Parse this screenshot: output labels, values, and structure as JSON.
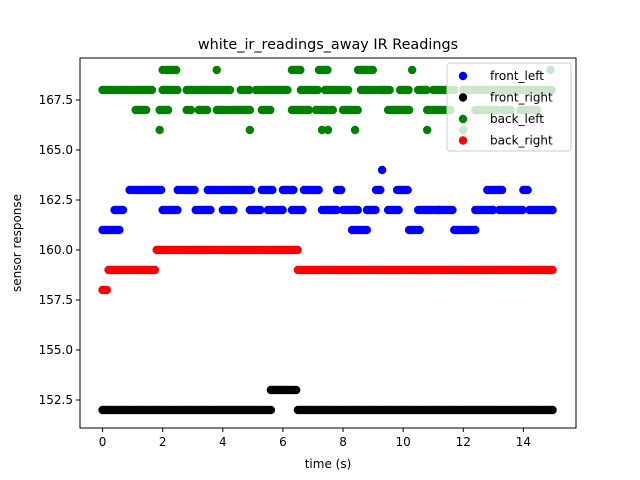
{
  "chart_data": {
    "type": "scatter",
    "title": "white_ir_readings_away IR Readings",
    "xlabel": "time (s)",
    "ylabel": "sensor response",
    "xlim": [
      -0.75,
      15.75
    ],
    "ylim": [
      151.1,
      169.6
    ],
    "xticks": [
      0,
      2,
      4,
      6,
      8,
      10,
      12,
      14
    ],
    "yticks": [
      152.5,
      155.0,
      157.5,
      160.0,
      162.5,
      165.0,
      167.5
    ],
    "ytick_labels": [
      "152.5",
      "155.0",
      "157.5",
      "160.0",
      "162.5",
      "165.0",
      "167.5"
    ],
    "grid": false,
    "legend_position": "top-right",
    "series": [
      {
        "name": "front_left",
        "color": "#0000ff",
        "segments": [
          [
            0.0,
            0.6,
            161
          ],
          [
            0.4,
            0.7,
            162
          ],
          [
            0.9,
            2.0,
            163
          ],
          [
            2.0,
            2.5,
            162
          ],
          [
            2.5,
            3.1,
            163
          ],
          [
            3.1,
            3.6,
            162
          ],
          [
            3.5,
            4.0,
            163
          ],
          [
            4.0,
            4.4,
            162
          ],
          [
            4.1,
            5.0,
            163
          ],
          [
            4.9,
            5.3,
            162
          ],
          [
            5.3,
            5.7,
            163
          ],
          [
            5.5,
            6.0,
            162
          ],
          [
            6.0,
            6.4,
            163
          ],
          [
            6.3,
            6.7,
            162
          ],
          [
            6.7,
            7.2,
            163
          ],
          [
            7.3,
            7.8,
            162
          ],
          [
            7.8,
            8.0,
            163
          ],
          [
            8.0,
            8.5,
            162
          ],
          [
            8.3,
            8.8,
            161
          ],
          [
            8.8,
            9.1,
            162
          ],
          [
            9.1,
            9.3,
            163
          ],
          [
            9.5,
            9.9,
            162
          ],
          [
            9.8,
            10.2,
            163
          ],
          [
            10.2,
            10.6,
            161
          ],
          [
            10.5,
            10.8,
            162
          ],
          [
            10.8,
            11.7,
            162
          ],
          [
            11.7,
            12.4,
            161
          ],
          [
            12.4,
            13.0,
            162
          ],
          [
            12.8,
            13.3,
            163
          ],
          [
            13.2,
            14.0,
            162
          ],
          [
            14.0,
            14.2,
            163
          ],
          [
            14.2,
            15.0,
            162
          ]
        ],
        "points": [
          [
            9.3,
            164
          ],
          [
            8.8,
            162
          ],
          [
            13.0,
            162
          ],
          [
            11.2,
            162
          ]
        ]
      },
      {
        "name": "front_right",
        "color": "#000000",
        "segments": [
          [
            0.0,
            5.6,
            152
          ],
          [
            5.6,
            6.5,
            153
          ],
          [
            6.5,
            15.0,
            152
          ]
        ],
        "points": []
      },
      {
        "name": "back_left",
        "color": "#008000",
        "segments": [
          [
            0.0,
            1.5,
            168
          ],
          [
            1.5,
            1.7,
            168
          ],
          [
            2.0,
            2.5,
            168
          ],
          [
            2.8,
            3.4,
            168
          ],
          [
            3.4,
            4.3,
            168
          ],
          [
            4.6,
            4.9,
            168
          ],
          [
            5.1,
            6.2,
            168
          ],
          [
            6.6,
            7.2,
            168
          ],
          [
            7.4,
            8.2,
            168
          ],
          [
            8.6,
            9.1,
            168
          ],
          [
            9.2,
            9.6,
            168
          ],
          [
            9.9,
            10.2,
            168
          ],
          [
            10.5,
            10.8,
            168
          ],
          [
            11.0,
            11.7,
            168
          ],
          [
            12.0,
            15.0,
            168
          ],
          [
            1.1,
            1.5,
            167
          ],
          [
            1.9,
            2.2,
            167
          ],
          [
            2.8,
            3.0,
            167
          ],
          [
            3.2,
            3.5,
            167
          ],
          [
            3.8,
            4.1,
            167
          ],
          [
            4.2,
            4.9,
            167
          ],
          [
            5.3,
            5.6,
            167
          ],
          [
            6.3,
            6.9,
            167
          ],
          [
            7.1,
            7.7,
            167
          ],
          [
            8.0,
            8.5,
            167
          ],
          [
            9.5,
            10.2,
            167
          ],
          [
            10.8,
            11.6,
            167
          ],
          [
            12.4,
            13.1,
            167
          ],
          [
            13.3,
            13.6,
            167
          ],
          [
            13.9,
            14.5,
            167
          ],
          [
            2.1,
            2.5,
            169
          ],
          [
            6.3,
            6.6,
            169
          ],
          [
            7.2,
            7.5,
            169
          ],
          [
            8.5,
            9.0,
            169
          ]
        ],
        "points": [
          [
            1.9,
            166
          ],
          [
            4.9,
            166
          ],
          [
            7.3,
            166
          ],
          [
            7.5,
            166
          ],
          [
            8.4,
            166
          ],
          [
            10.8,
            166
          ],
          [
            12.0,
            166
          ],
          [
            2.0,
            169
          ],
          [
            3.8,
            169
          ],
          [
            10.3,
            169
          ],
          [
            14.9,
            169
          ]
        ]
      },
      {
        "name": "back_right",
        "color": "#ff0000",
        "segments": [
          [
            0.0,
            0.2,
            158
          ],
          [
            0.2,
            1.8,
            159
          ],
          [
            1.8,
            6.5,
            160
          ],
          [
            6.5,
            15.0,
            159
          ]
        ],
        "points": []
      }
    ]
  }
}
